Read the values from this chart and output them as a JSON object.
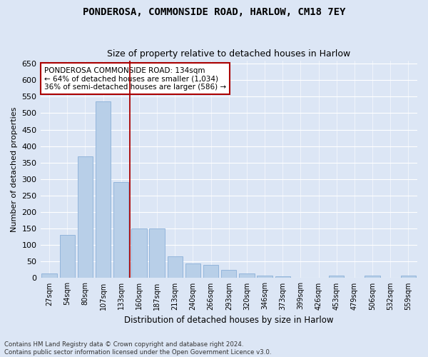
{
  "title": "PONDEROSA, COMMONSIDE ROAD, HARLOW, CM18 7EY",
  "subtitle": "Size of property relative to detached houses in Harlow",
  "xlabel": "Distribution of detached houses by size in Harlow",
  "ylabel": "Number of detached properties",
  "categories": [
    "27sqm",
    "54sqm",
    "80sqm",
    "107sqm",
    "133sqm",
    "160sqm",
    "187sqm",
    "213sqm",
    "240sqm",
    "266sqm",
    "293sqm",
    "320sqm",
    "346sqm",
    "373sqm",
    "399sqm",
    "426sqm",
    "453sqm",
    "479sqm",
    "506sqm",
    "532sqm",
    "559sqm"
  ],
  "values": [
    15,
    130,
    370,
    535,
    290,
    150,
    150,
    65,
    45,
    40,
    25,
    15,
    8,
    5,
    0,
    0,
    8,
    0,
    8,
    0,
    8
  ],
  "bar_color": "#b8cfe8",
  "bar_edge_color": "#8ab0d8",
  "vline_index": 4,
  "vline_color": "#aa0000",
  "annotation_text": "PONDEROSA COMMONSIDE ROAD: 134sqm\n← 64% of detached houses are smaller (1,034)\n36% of semi-detached houses are larger (586) →",
  "annotation_box_color": "white",
  "annotation_box_edge": "#aa0000",
  "title_fontsize": 10,
  "subtitle_fontsize": 9,
  "footer_text": "Contains HM Land Registry data © Crown copyright and database right 2024.\nContains public sector information licensed under the Open Government Licence v3.0.",
  "background_color": "#dce6f5",
  "plot_background": "#dce6f5",
  "ylim": [
    0,
    660
  ],
  "yticks": [
    0,
    50,
    100,
    150,
    200,
    250,
    300,
    350,
    400,
    450,
    500,
    550,
    600,
    650
  ]
}
